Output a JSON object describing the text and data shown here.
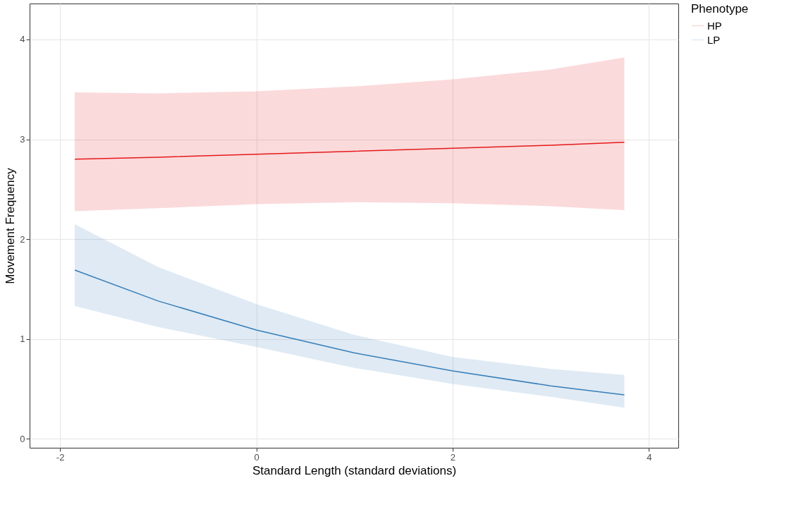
{
  "chart_data": {
    "type": "line",
    "xlabel": "Standard Length (standard deviations)",
    "ylabel": "Movement Frequency",
    "legend_title": "Phenotype",
    "legend": "right",
    "grid": true,
    "xlim": [
      -2.31,
      4.3
    ],
    "ylim": [
      -0.09,
      4.36
    ],
    "xticks": [
      -2,
      0,
      2,
      4
    ],
    "yticks": [
      0,
      1,
      2,
      3,
      4
    ],
    "series": [
      {
        "name": "HP",
        "color": "#e41a1c",
        "x": [
          -1.85,
          -1,
          0,
          1,
          2,
          3,
          3.75
        ],
        "values": [
          2.8,
          2.82,
          2.85,
          2.88,
          2.91,
          2.94,
          2.97
        ],
        "lower": [
          2.28,
          2.31,
          2.35,
          2.37,
          2.36,
          2.33,
          2.29
        ],
        "upper": [
          3.47,
          3.46,
          3.48,
          3.53,
          3.6,
          3.7,
          3.82
        ]
      },
      {
        "name": "LP",
        "color": "#377eb8",
        "x": [
          -1.85,
          -1,
          0,
          1,
          2,
          3,
          3.75
        ],
        "values": [
          1.69,
          1.38,
          1.09,
          0.86,
          0.68,
          0.53,
          0.44
        ],
        "lower": [
          1.33,
          1.12,
          0.92,
          0.71,
          0.55,
          0.42,
          0.31
        ],
        "upper": [
          2.15,
          1.72,
          1.35,
          1.04,
          0.82,
          0.7,
          0.64
        ]
      }
    ]
  }
}
